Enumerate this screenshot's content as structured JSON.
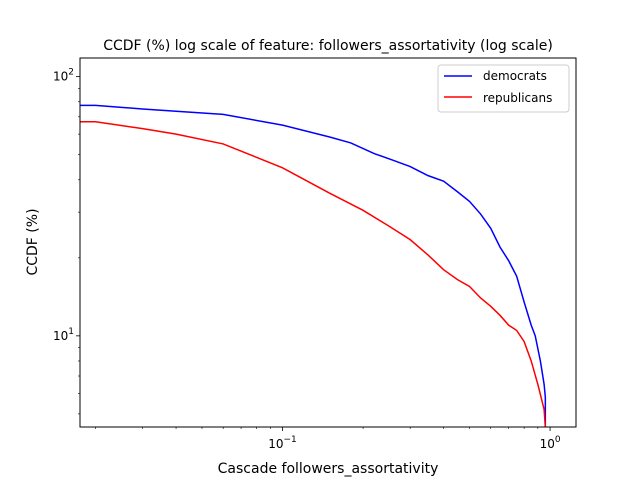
{
  "chart_data": {
    "type": "line",
    "title": "CCDF (%) log scale of feature: followers_assortativity (log scale)",
    "xlabel": "Cascade followers_assortativity",
    "ylabel": "CCDF (%)",
    "xscale": "log",
    "yscale": "log",
    "xlim": [
      0.0175,
      1.25
    ],
    "ylim": [
      4.45,
      118
    ],
    "x_ticks": [
      {
        "value": 0.1,
        "base": "10",
        "exp": "−1"
      },
      {
        "value": 1,
        "base": "10",
        "exp": "0"
      }
    ],
    "y_ticks": [
      {
        "value": 10,
        "base": "10",
        "exp": "1"
      },
      {
        "value": 100,
        "base": "10",
        "exp": "2"
      }
    ],
    "legend_position": "top-right",
    "grid": false,
    "series": [
      {
        "name": "democrats",
        "color": "#0000ff",
        "points": [
          [
            0.0175,
            77.5
          ],
          [
            0.02,
            77.5
          ],
          [
            0.03,
            75
          ],
          [
            0.04,
            73.5
          ],
          [
            0.06,
            71.5
          ],
          [
            0.1,
            65
          ],
          [
            0.15,
            58.5
          ],
          [
            0.18,
            55.5
          ],
          [
            0.22,
            50.5
          ],
          [
            0.26,
            47.5
          ],
          [
            0.3,
            45
          ],
          [
            0.35,
            41.5
          ],
          [
            0.4,
            39.5
          ],
          [
            0.45,
            36
          ],
          [
            0.5,
            33
          ],
          [
            0.55,
            29.5
          ],
          [
            0.6,
            26
          ],
          [
            0.65,
            22
          ],
          [
            0.7,
            19.5
          ],
          [
            0.75,
            17
          ],
          [
            0.8,
            13.5
          ],
          [
            0.85,
            11
          ],
          [
            0.88,
            10
          ],
          [
            0.92,
            8
          ],
          [
            0.95,
            6.5
          ],
          [
            0.96,
            5.8
          ],
          [
            0.96,
            4.45
          ]
        ]
      },
      {
        "name": "republicans",
        "color": "#ff0000",
        "points": [
          [
            0.0175,
            67
          ],
          [
            0.02,
            67
          ],
          [
            0.03,
            63
          ],
          [
            0.04,
            60
          ],
          [
            0.06,
            55
          ],
          [
            0.1,
            44.5
          ],
          [
            0.15,
            35.5
          ],
          [
            0.2,
            30.5
          ],
          [
            0.25,
            26.5
          ],
          [
            0.3,
            23.5
          ],
          [
            0.35,
            20.5
          ],
          [
            0.4,
            18
          ],
          [
            0.45,
            16.5
          ],
          [
            0.5,
            15.5
          ],
          [
            0.55,
            14
          ],
          [
            0.6,
            13
          ],
          [
            0.65,
            12
          ],
          [
            0.7,
            11
          ],
          [
            0.75,
            10.5
          ],
          [
            0.8,
            9.5
          ],
          [
            0.85,
            8
          ],
          [
            0.9,
            6.5
          ],
          [
            0.95,
            5.2
          ],
          [
            0.96,
            4.45
          ]
        ]
      }
    ]
  }
}
